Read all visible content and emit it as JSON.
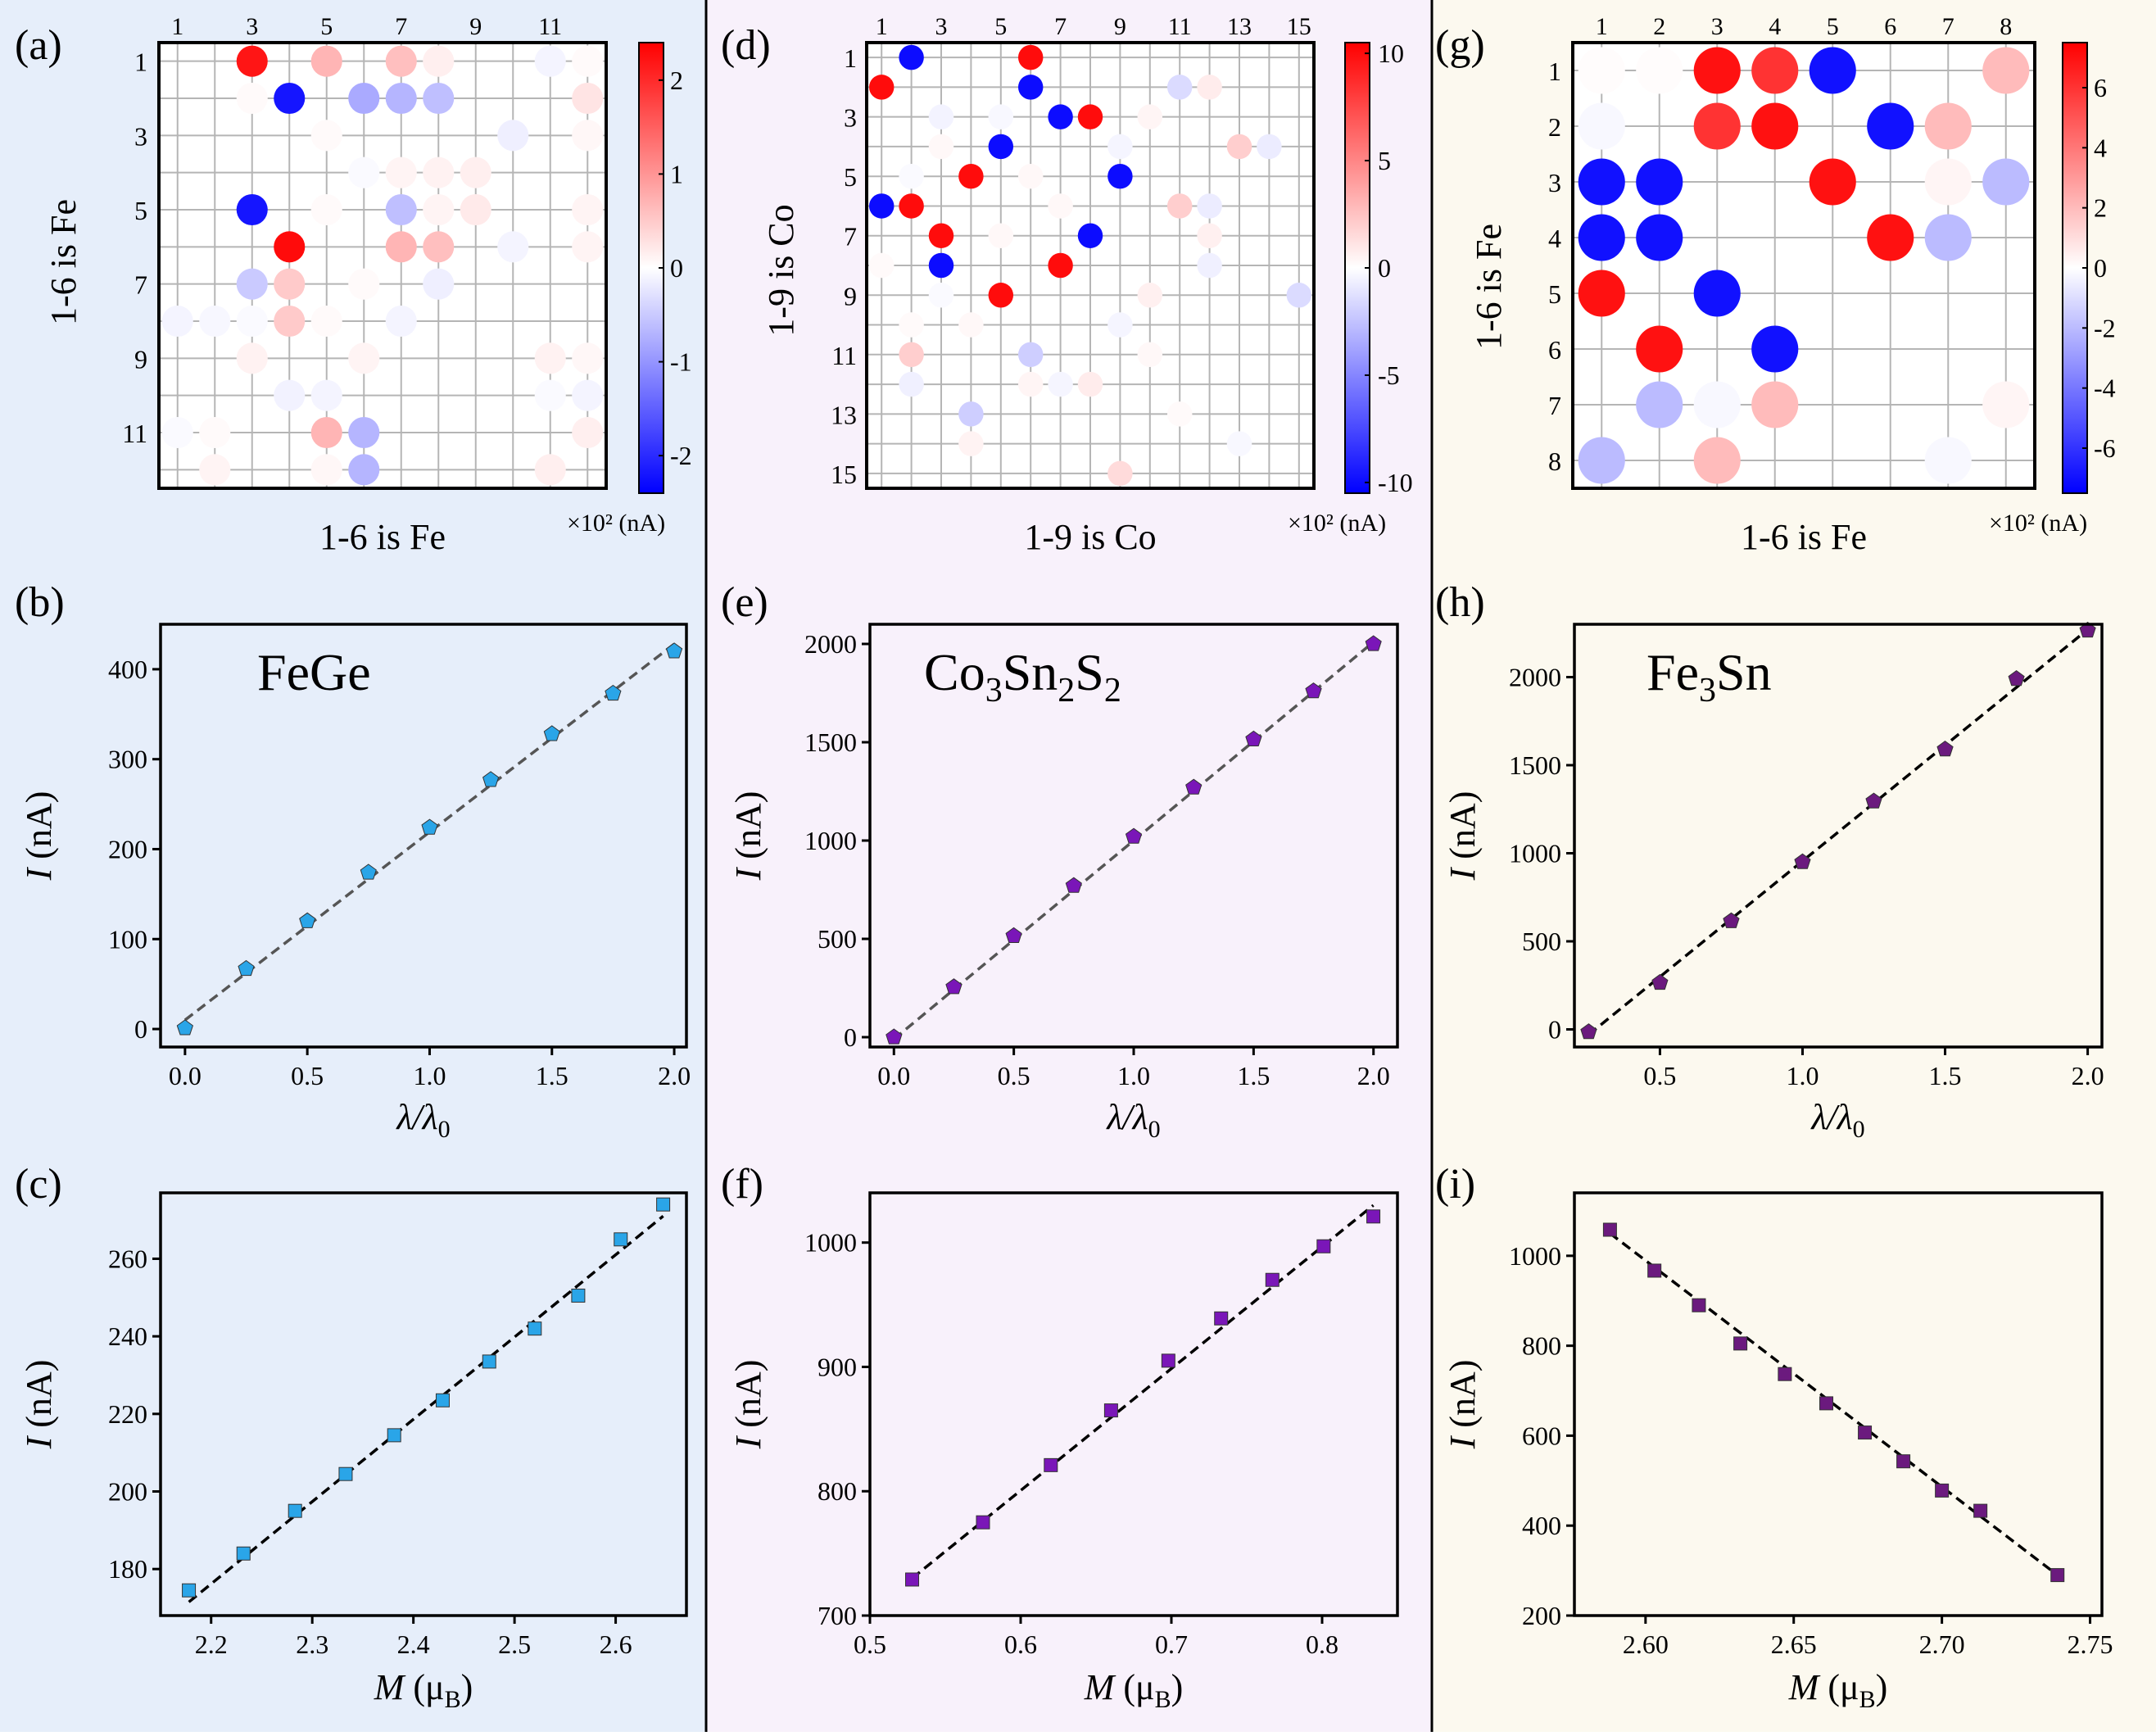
{
  "figure": {
    "column_backgrounds": [
      "#e6eefa",
      "#f8f1fb",
      "#fcf9ef"
    ],
    "heatmap_colors": {
      "negative": "#0000ff",
      "zero": "#ffffff",
      "positive": "#ff0000"
    },
    "heatmap_unit": "×10² (nA)"
  },
  "chart_data": [
    {
      "id": "a",
      "panel_label": "(a)",
      "type": "heatmap",
      "xlabel": "1-6 is Fe",
      "ylabel": "1-6 is Fe",
      "size": 12,
      "x_ticks": [
        "1",
        "3",
        "5",
        "7",
        "9",
        "11"
      ],
      "y_ticks": [
        "1",
        "3",
        "5",
        "7",
        "9",
        "11"
      ],
      "colorbar": {
        "min": -2.4,
        "max": 2.4,
        "ticks": [
          "2",
          "1",
          "0",
          "-1",
          "-2"
        ],
        "unit": "×10² (nA)"
      },
      "cells": [
        [
          3,
          1,
          2.2
        ],
        [
          5,
          1,
          0.7
        ],
        [
          7,
          1,
          0.6
        ],
        [
          8,
          1,
          0.15
        ],
        [
          11,
          1,
          -0.1
        ],
        [
          12,
          1,
          0.05
        ],
        [
          4,
          2,
          -2.2
        ],
        [
          6,
          2,
          -0.8
        ],
        [
          7,
          2,
          -0.7
        ],
        [
          8,
          2,
          -0.6
        ],
        [
          12,
          2,
          0.25
        ],
        [
          3,
          2,
          0.05
        ],
        [
          5,
          3,
          0.05
        ],
        [
          10,
          3,
          -0.15
        ],
        [
          12,
          3,
          0.08
        ],
        [
          7,
          4,
          0.1
        ],
        [
          8,
          4,
          0.12
        ],
        [
          9,
          4,
          0.15
        ],
        [
          6,
          4,
          -0.05
        ],
        [
          3,
          5,
          -2.2
        ],
        [
          7,
          5,
          -0.6
        ],
        [
          9,
          5,
          0.2
        ],
        [
          8,
          5,
          0.1
        ],
        [
          12,
          5,
          0.1
        ],
        [
          5,
          5,
          0.05
        ],
        [
          4,
          6,
          2.3
        ],
        [
          7,
          6,
          0.7
        ],
        [
          8,
          6,
          0.6
        ],
        [
          10,
          6,
          -0.1
        ],
        [
          12,
          6,
          0.1
        ],
        [
          3,
          7,
          -0.5
        ],
        [
          4,
          7,
          0.5
        ],
        [
          8,
          7,
          -0.15
        ],
        [
          6,
          7,
          0.05
        ],
        [
          1,
          8,
          -0.1
        ],
        [
          2,
          8,
          -0.08
        ],
        [
          3,
          8,
          -0.05
        ],
        [
          4,
          8,
          0.5
        ],
        [
          5,
          8,
          0.05
        ],
        [
          7,
          8,
          -0.1
        ],
        [
          3,
          9,
          0.12
        ],
        [
          6,
          9,
          0.1
        ],
        [
          11,
          9,
          0.12
        ],
        [
          12,
          9,
          0.08
        ],
        [
          4,
          10,
          -0.12
        ],
        [
          5,
          10,
          -0.1
        ],
        [
          11,
          10,
          -0.05
        ],
        [
          12,
          10,
          -0.1
        ],
        [
          1,
          11,
          -0.05
        ],
        [
          2,
          11,
          0.05
        ],
        [
          5,
          11,
          0.7
        ],
        [
          6,
          11,
          -0.7
        ],
        [
          12,
          11,
          0.15
        ],
        [
          2,
          12,
          0.1
        ],
        [
          5,
          12,
          0.08
        ],
        [
          6,
          12,
          -0.7
        ],
        [
          11,
          12,
          0.15
        ]
      ]
    },
    {
      "id": "d",
      "panel_label": "(d)",
      "type": "heatmap",
      "xlabel": "1-9 is Co",
      "ylabel": "1-9 is Co",
      "size": 15,
      "x_ticks": [
        "1",
        "3",
        "5",
        "7",
        "9",
        "11",
        "13",
        "15"
      ],
      "y_ticks": [
        "1",
        "3",
        "5",
        "7",
        "9",
        "11",
        "13",
        "15"
      ],
      "colorbar": {
        "min": -10.5,
        "max": 10.5,
        "ticks": [
          "10",
          "5",
          "0",
          "-5",
          "-10"
        ],
        "unit": "×10² (nA)"
      },
      "cells": [
        [
          2,
          1,
          -10
        ],
        [
          6,
          1,
          10
        ],
        [
          11,
          2,
          -1.5
        ],
        [
          12,
          2,
          0.8
        ],
        [
          1,
          2,
          10
        ],
        [
          6,
          2,
          -10
        ],
        [
          7,
          3,
          -10
        ],
        [
          8,
          3,
          10
        ],
        [
          3,
          3,
          -0.5
        ],
        [
          5,
          3,
          -0.3
        ],
        [
          10,
          3,
          0.4
        ],
        [
          5,
          4,
          -10
        ],
        [
          13,
          4,
          2
        ],
        [
          14,
          4,
          -0.8
        ],
        [
          3,
          4,
          0.3
        ],
        [
          9,
          4,
          -0.4
        ],
        [
          4,
          5,
          10
        ],
        [
          9,
          5,
          -10
        ],
        [
          6,
          5,
          0.3
        ],
        [
          2,
          5,
          -0.2
        ],
        [
          1,
          6,
          -10
        ],
        [
          2,
          6,
          10
        ],
        [
          11,
          6,
          2
        ],
        [
          12,
          6,
          -0.8
        ],
        [
          7,
          6,
          0.3
        ],
        [
          3,
          7,
          10
        ],
        [
          8,
          7,
          -10
        ],
        [
          12,
          7,
          0.6
        ],
        [
          5,
          7,
          0.3
        ],
        [
          3,
          8,
          -10
        ],
        [
          7,
          8,
          10
        ],
        [
          12,
          8,
          -0.6
        ],
        [
          1,
          8,
          0.2
        ],
        [
          5,
          9,
          10
        ],
        [
          10,
          9,
          0.6
        ],
        [
          15,
          9,
          -1.5
        ],
        [
          3,
          9,
          -0.2
        ],
        [
          9,
          10,
          -0.4
        ],
        [
          4,
          10,
          0.3
        ],
        [
          2,
          10,
          0.2
        ],
        [
          2,
          11,
          2
        ],
        [
          6,
          11,
          -2
        ],
        [
          10,
          11,
          0.3
        ],
        [
          2,
          12,
          -0.6
        ],
        [
          6,
          12,
          0.4
        ],
        [
          7,
          12,
          -0.4
        ],
        [
          8,
          12,
          0.8
        ],
        [
          4,
          13,
          -2
        ],
        [
          11,
          13,
          0.2
        ],
        [
          4,
          14,
          0.5
        ],
        [
          13,
          14,
          -0.3
        ],
        [
          9,
          15,
          1.5
        ]
      ]
    },
    {
      "id": "g",
      "panel_label": "(g)",
      "type": "heatmap",
      "xlabel": "1-6 is Fe",
      "ylabel": "1-6 is Fe",
      "size": 8,
      "x_ticks": [
        "1",
        "2",
        "3",
        "4",
        "5",
        "6",
        "7",
        "8"
      ],
      "y_ticks": [
        "1",
        "2",
        "3",
        "4",
        "5",
        "6",
        "7",
        "8"
      ],
      "colorbar": {
        "min": -7.5,
        "max": 7.5,
        "ticks": [
          "6",
          "4",
          "2",
          "0",
          "-2",
          "-4",
          "-6"
        ],
        "unit": "×10² (nA)"
      },
      "cells": [
        [
          3,
          1,
          7
        ],
        [
          4,
          1,
          6
        ],
        [
          5,
          1,
          -7
        ],
        [
          8,
          1,
          2
        ],
        [
          1,
          1,
          0.1
        ],
        [
          2,
          1,
          0.1
        ],
        [
          3,
          2,
          6
        ],
        [
          4,
          2,
          7
        ],
        [
          6,
          2,
          -7
        ],
        [
          7,
          2,
          2
        ],
        [
          1,
          2,
          -0.2
        ],
        [
          1,
          3,
          -7
        ],
        [
          2,
          3,
          -7
        ],
        [
          5,
          3,
          7
        ],
        [
          8,
          3,
          -2
        ],
        [
          7,
          3,
          0.3
        ],
        [
          1,
          4,
          -7
        ],
        [
          2,
          4,
          -7
        ],
        [
          6,
          4,
          7
        ],
        [
          7,
          4,
          -2
        ],
        [
          1,
          5,
          7
        ],
        [
          3,
          5,
          -7
        ],
        [
          2,
          6,
          7
        ],
        [
          4,
          6,
          -7
        ],
        [
          2,
          7,
          -2
        ],
        [
          4,
          7,
          2
        ],
        [
          3,
          7,
          -0.2
        ],
        [
          8,
          7,
          0.3
        ],
        [
          1,
          8,
          -2
        ],
        [
          3,
          8,
          2
        ],
        [
          7,
          8,
          -0.2
        ]
      ]
    },
    {
      "id": "b",
      "panel_label": "(b)",
      "type": "scatter",
      "annotation": "FeGe",
      "xlabel_main": "λ/λ",
      "xlabel_sub": "0",
      "ylabel_main": "I",
      "ylabel_unit": " (nA)",
      "xlim": [
        -0.1,
        2.05
      ],
      "ylim": [
        -20,
        450
      ],
      "xticks": [
        0.0,
        0.5,
        1.0,
        1.5,
        2.0
      ],
      "xtick_labels": [
        "0.0",
        "0.5",
        "1.0",
        "1.5",
        "2.0"
      ],
      "yticks": [
        0,
        100,
        200,
        300,
        400
      ],
      "ytick_labels": [
        "0",
        "100",
        "200",
        "300",
        "400"
      ],
      "marker": "pentagon",
      "color": "#2aa5e8",
      "line_color": "#555555",
      "x": [
        0.0,
        0.25,
        0.5,
        0.75,
        1.0,
        1.25,
        1.5,
        1.75,
        2.0
      ],
      "y": [
        1,
        67,
        120,
        174,
        224,
        277,
        328,
        373,
        420
      ],
      "fit": [
        [
          0.0,
          10
        ],
        [
          2.0,
          428
        ]
      ]
    },
    {
      "id": "e",
      "panel_label": "(e)",
      "type": "scatter",
      "annotation_parts": [
        [
          "Co",
          ""
        ],
        [
          "3",
          "sub"
        ],
        [
          "Sn",
          ""
        ],
        [
          "2",
          "sub"
        ],
        [
          "S",
          ""
        ],
        [
          "2",
          "sub"
        ]
      ],
      "xlabel_main": "λ/λ",
      "xlabel_sub": "0",
      "ylabel_main": "I",
      "ylabel_unit": " (nA)",
      "xlim": [
        -0.1,
        2.1
      ],
      "ylim": [
        -50,
        2100
      ],
      "xticks": [
        0.0,
        0.5,
        1.0,
        1.5,
        2.0
      ],
      "xtick_labels": [
        "0.0",
        "0.5",
        "1.0",
        "1.5",
        "2.0"
      ],
      "yticks": [
        0,
        500,
        1000,
        1500,
        2000
      ],
      "ytick_labels": [
        "0",
        "500",
        "1000",
        "1500",
        "2000"
      ],
      "marker": "pentagon",
      "color": "#7a16b8",
      "line_color": "#555555",
      "x": [
        0.0,
        0.25,
        0.5,
        0.75,
        1.0,
        1.25,
        1.5,
        1.75,
        2.0
      ],
      "y": [
        0,
        255,
        515,
        770,
        1020,
        1270,
        1515,
        1760,
        2000
      ],
      "fit": [
        [
          0.0,
          -10
        ],
        [
          2.0,
          2010
        ]
      ]
    },
    {
      "id": "h",
      "panel_label": "(h)",
      "type": "scatter",
      "annotation_parts": [
        [
          "Fe",
          ""
        ],
        [
          "3",
          "sub"
        ],
        [
          "Sn",
          ""
        ],
        [
          "",
          ""
        ],
        [
          "",
          ""
        ],
        [
          "",
          ""
        ]
      ],
      "xlabel_main": "λ/λ",
      "xlabel_sub": "0",
      "ylabel_main": "I",
      "ylabel_unit": " (nA)",
      "xlim": [
        0.2,
        2.05
      ],
      "ylim": [
        -100,
        2300
      ],
      "xticks": [
        0.5,
        1.0,
        1.5,
        2.0
      ],
      "xtick_labels": [
        "0.5",
        "1.0",
        "1.5",
        "2.0"
      ],
      "yticks": [
        0,
        500,
        1000,
        1500,
        2000
      ],
      "ytick_labels": [
        "0",
        "500",
        "1000",
        "1500",
        "2000"
      ],
      "marker": "pentagon",
      "color": "#6b1a7e",
      "line_color": "#000000",
      "x": [
        0.25,
        0.5,
        0.75,
        1.0,
        1.25,
        1.5,
        1.75,
        2.0
      ],
      "y": [
        -15,
        265,
        615,
        950,
        1295,
        1590,
        1990,
        2265
      ],
      "fit": [
        [
          0.25,
          -30
        ],
        [
          2.0,
          2270
        ]
      ]
    },
    {
      "id": "c",
      "panel_label": "(c)",
      "type": "scatter",
      "xlabel_main": "M",
      "xlabel_mu": " (μ",
      "xlabel_sub": "B",
      "xlabel_close": ")",
      "ylabel_main": "I",
      "ylabel_unit": " (nA)",
      "xlim": [
        2.15,
        2.67
      ],
      "ylim": [
        168,
        277
      ],
      "xticks": [
        2.2,
        2.3,
        2.4,
        2.5,
        2.6
      ],
      "xtick_labels": [
        "2.2",
        "2.3",
        "2.4",
        "2.5",
        "2.6"
      ],
      "yticks": [
        180,
        200,
        220,
        240,
        260
      ],
      "ytick_labels": [
        "180",
        "200",
        "220",
        "240",
        "260"
      ],
      "marker": "square",
      "color": "#2aa5e8",
      "line_color": "#000000",
      "x": [
        2.178,
        2.232,
        2.283,
        2.333,
        2.381,
        2.429,
        2.475,
        2.52,
        2.563,
        2.605,
        2.647
      ],
      "y": [
        174.5,
        184,
        195,
        204.5,
        214.5,
        223.5,
        233.5,
        242,
        250.5,
        265,
        274
      ],
      "fit": [
        [
          2.178,
          171.5
        ],
        [
          2.647,
          271
        ]
      ]
    },
    {
      "id": "f",
      "panel_label": "(f)",
      "type": "scatter",
      "xlabel_main": "M",
      "xlabel_mu": " (μ",
      "xlabel_sub": "B",
      "xlabel_close": ")",
      "ylabel_main": "I",
      "ylabel_unit": " (nA)",
      "xlim": [
        0.5,
        0.85
      ],
      "ylim": [
        700,
        1040
      ],
      "xticks": [
        0.5,
        0.6,
        0.7,
        0.8
      ],
      "xtick_labels": [
        "0.5",
        "0.6",
        "0.7",
        "0.8"
      ],
      "yticks": [
        700,
        800,
        900,
        1000
      ],
      "ytick_labels": [
        "700",
        "800",
        "900",
        "1000"
      ],
      "marker": "square",
      "color": "#7a16b8",
      "line_color": "#000000",
      "x": [
        0.528,
        0.575,
        0.62,
        0.66,
        0.698,
        0.733,
        0.767,
        0.801,
        0.834
      ],
      "y": [
        729,
        775,
        821,
        865,
        905,
        939,
        970,
        997,
        1021
      ],
      "fit": [
        [
          0.528,
          730
        ],
        [
          0.834,
          1030
        ]
      ]
    },
    {
      "id": "i",
      "panel_label": "(i)",
      "type": "scatter",
      "xlabel_main": "M",
      "xlabel_mu": " (μ",
      "xlabel_sub": "B",
      "xlabel_close": ")",
      "ylabel_main": "I",
      "ylabel_unit": " (nA)",
      "xlim": [
        2.576,
        2.754
      ],
      "ylim": [
        200,
        1140
      ],
      "xticks": [
        2.6,
        2.65,
        2.7,
        2.75
      ],
      "xtick_labels": [
        "2.60",
        "2.65",
        "2.70",
        "2.75"
      ],
      "yticks": [
        200,
        400,
        600,
        800,
        1000
      ],
      "ytick_labels": [
        "200",
        "400",
        "600",
        "800",
        "1000"
      ],
      "marker": "square",
      "color": "#6b1a7e",
      "line_color": "#000000",
      "x": [
        2.588,
        2.603,
        2.618,
        2.632,
        2.647,
        2.661,
        2.674,
        2.687,
        2.7,
        2.713,
        2.739
      ],
      "y": [
        1058,
        967,
        890,
        805,
        737,
        672,
        607,
        543,
        478,
        433,
        290
      ],
      "fit": [
        [
          2.588,
          1050
        ],
        [
          2.739,
          290
        ]
      ]
    }
  ]
}
